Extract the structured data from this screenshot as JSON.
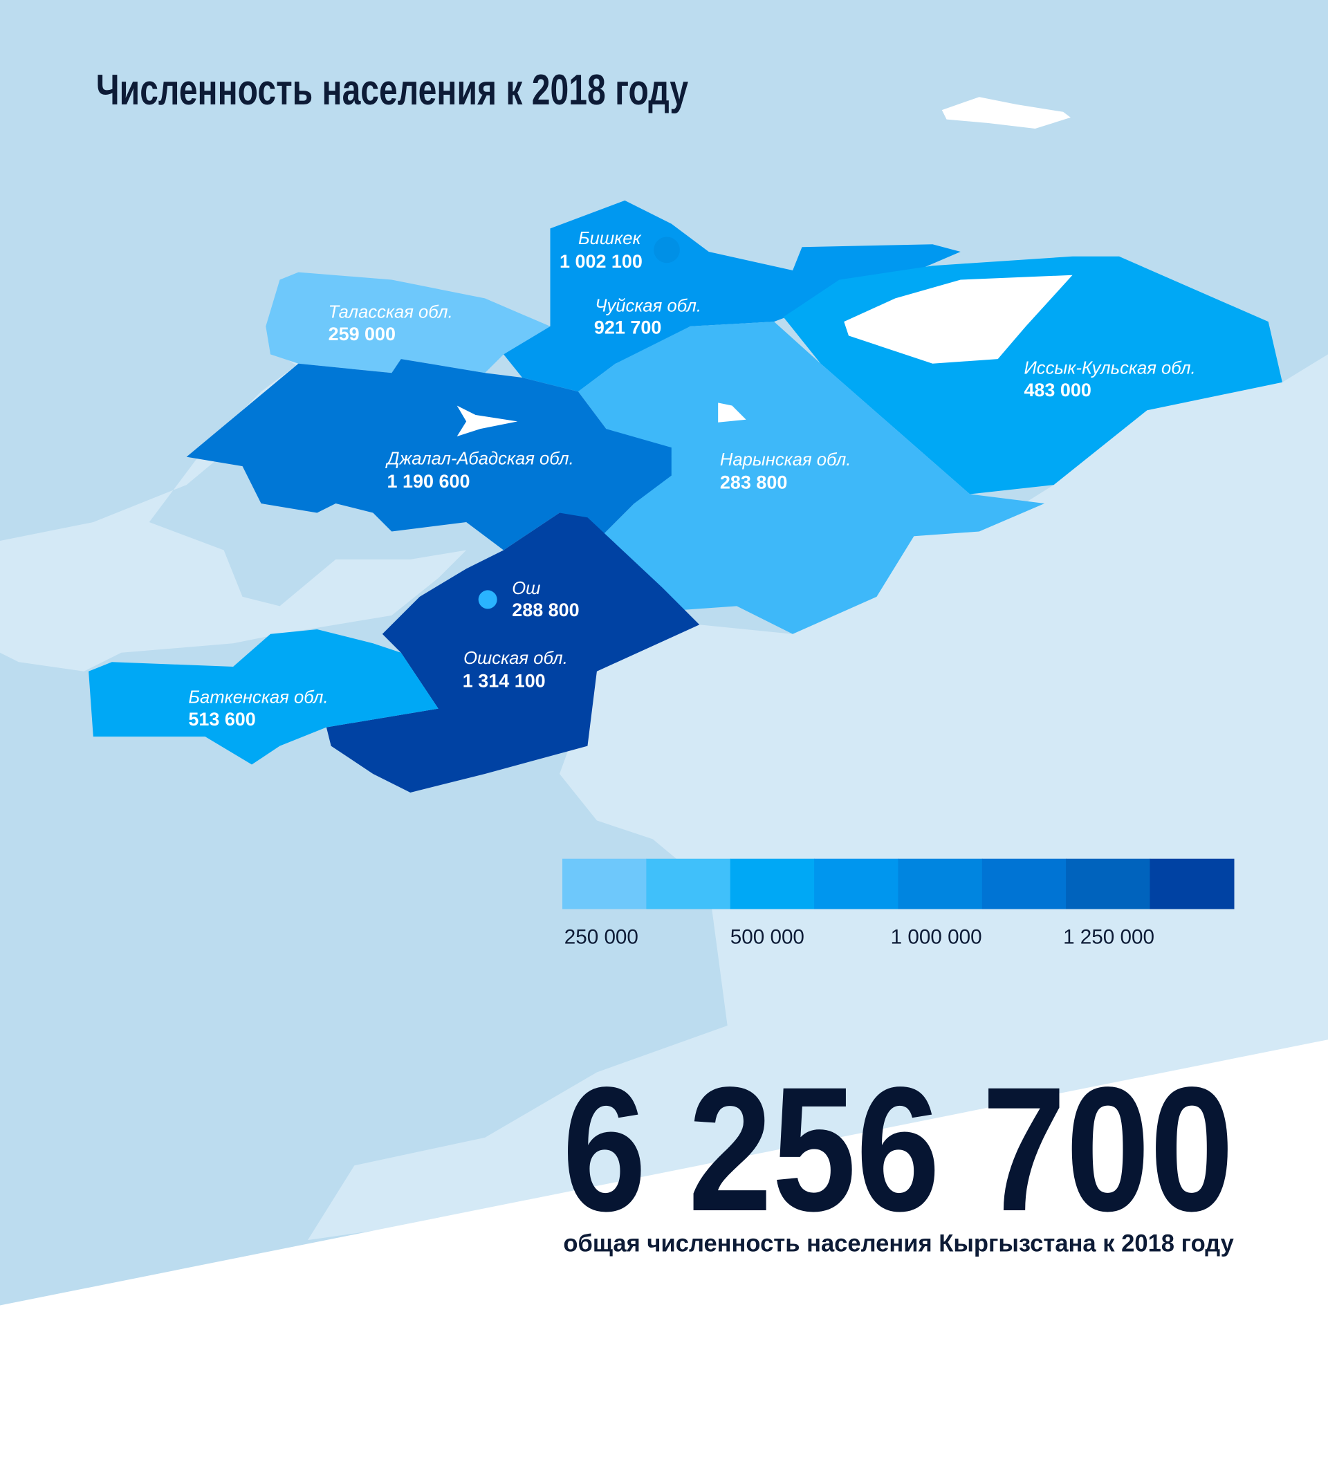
{
  "title": "Численность населения к 2018 году",
  "regions": [
    {
      "name": "Бишкек",
      "value": "1 002 100",
      "population": 1002100,
      "color": "#0098f0"
    },
    {
      "name": "Чуйская обл.",
      "value": "921 700",
      "population": 921700,
      "color": "#0098f0"
    },
    {
      "name": "Таласская обл.",
      "value": "259 000",
      "population": 259000,
      "color": "#6ec8fb"
    },
    {
      "name": "Иссык-Кульская обл.",
      "value": "483 000",
      "population": 483000,
      "color": "#00a8f5"
    },
    {
      "name": "Джалал-Абадская обл.",
      "value": "1 190 600",
      "population": 1190600,
      "color": "#0077d6"
    },
    {
      "name": "Нарынская обл.",
      "value": "283 800",
      "population": 283800,
      "color": "#3eb8f9"
    },
    {
      "name": "Ош",
      "value": "288 800",
      "population": 288800,
      "color": "#3eb8f9"
    },
    {
      "name": "Ошская обл.",
      "value": "1 314 100",
      "population": 1314100,
      "color": "#0042a3"
    },
    {
      "name": "Баткенская обл.",
      "value": "513 600",
      "population": 513600,
      "color": "#00a8f5"
    }
  ],
  "legend": {
    "colors": [
      "#6ec8fb",
      "#40c0fa",
      "#00a8f5",
      "#0096ee",
      "#0085e0",
      "#0074d4",
      "#0063bd",
      "#0042a3"
    ],
    "labels": [
      "250 000",
      "500 000",
      "1 000 000",
      "1 250 000"
    ]
  },
  "total": {
    "value": "6 256 700",
    "caption": "общая численность населения Кыргызстана к 2018 году"
  }
}
